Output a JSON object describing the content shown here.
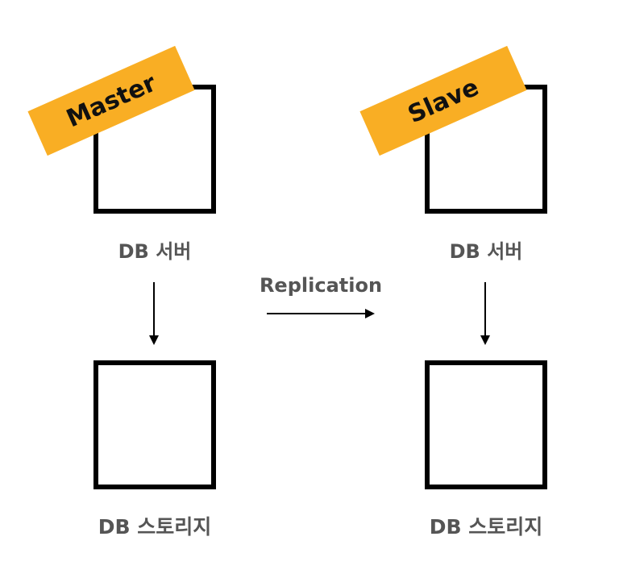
{
  "colors": {
    "tag": "#F9AE24",
    "box_border": "#000000",
    "label": "#555555",
    "arrow": "#000000"
  },
  "master": {
    "role_tag": "Master",
    "server_label": "DB 서버",
    "storage_label": "DB 스토리지"
  },
  "slave": {
    "role_tag": "Slave",
    "server_label": "DB 서버",
    "storage_label": "DB 스토리지"
  },
  "replication": {
    "label": "Replication"
  }
}
